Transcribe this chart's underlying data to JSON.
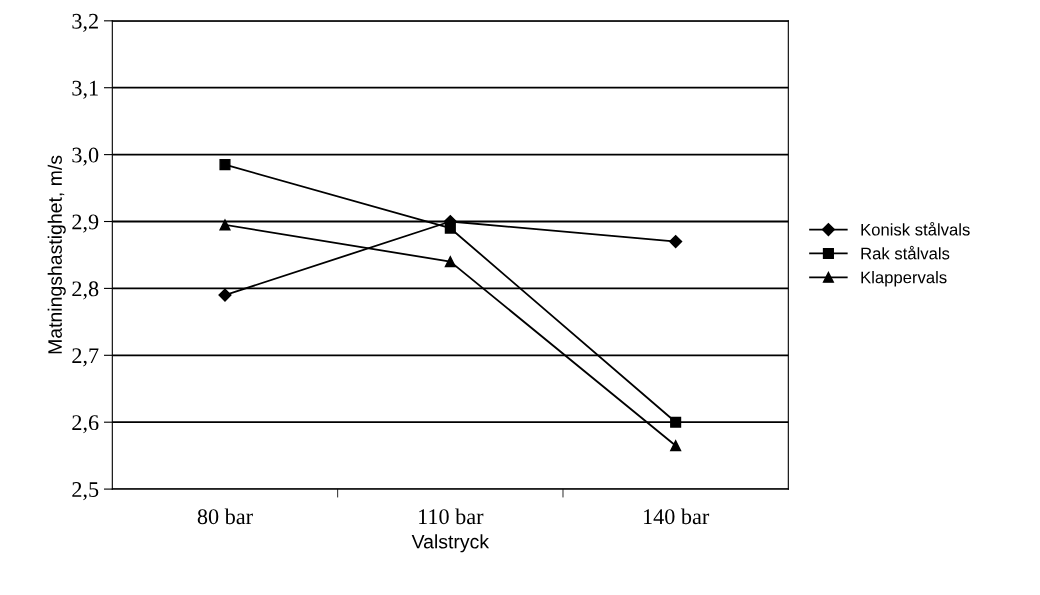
{
  "chart_data": {
    "type": "line",
    "xlabel": "Valstryck",
    "ylabel": "Matningshastighet, m/s",
    "categories": [
      "80 bar",
      "110 bar",
      "140 bar"
    ],
    "series": [
      {
        "name": "Konisk stålvals",
        "color": "#000000",
        "marker": "diamond",
        "values": [
          2.79,
          2.9,
          2.87
        ]
      },
      {
        "name": "Rak stålvals",
        "color": "#000000",
        "marker": "square",
        "values": [
          2.985,
          2.89,
          2.6
        ]
      },
      {
        "name": "Klappervals",
        "color": "#000000",
        "marker": "triangle",
        "values": [
          2.895,
          2.84,
          2.565
        ]
      }
    ],
    "ylim": [
      2.5,
      3.2
    ],
    "yticks": [
      {
        "value": 2.5,
        "label": "2,5"
      },
      {
        "value": 2.6,
        "label": "2,6"
      },
      {
        "value": 2.7,
        "label": "2,7"
      },
      {
        "value": 2.8,
        "label": "2,8"
      },
      {
        "value": 2.9,
        "label": "2,9"
      },
      {
        "value": 3.0,
        "label": "3,0"
      },
      {
        "value": 3.1,
        "label": "3,1"
      },
      {
        "value": 3.2,
        "label": "3,2"
      }
    ],
    "grid": "y",
    "legend": "right",
    "line_style": "solid"
  }
}
